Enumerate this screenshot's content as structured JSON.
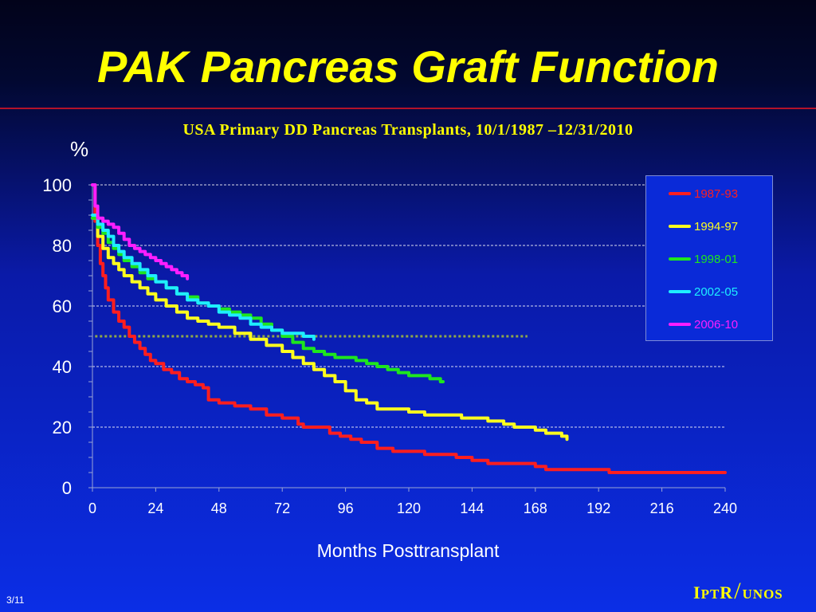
{
  "slide": {
    "title": "PAK Pancreas Graft Function",
    "page_number": "3/11",
    "logo": {
      "text_i": "I",
      "text_pt": "PT",
      "text_r": "R",
      "text_slash": "/",
      "text_unos": "UNOS"
    }
  },
  "chart_data": {
    "type": "line",
    "title": "USA Primary DD Pancreas Transplants, 10/1/1987 –12/31/2010",
    "ylabel": "%",
    "xlabel": "Months Posttransplant",
    "xlim": [
      0,
      240
    ],
    "ylim": [
      0,
      100
    ],
    "x_ticks": [
      "0",
      "24",
      "48",
      "72",
      "96",
      "120",
      "144",
      "168",
      "192",
      "216",
      "240"
    ],
    "y_ticks": [
      "100",
      "80",
      "60",
      "40",
      "20",
      "0"
    ],
    "x_tick_values": [
      0,
      24,
      48,
      72,
      96,
      120,
      144,
      168,
      192,
      216,
      240
    ],
    "y_tick_values": [
      100,
      80,
      60,
      40,
      20,
      0
    ],
    "grid": "horizontal dashed at 20, 40, 60, 80, 100",
    "reference_line": {
      "y": 50,
      "x_range": [
        1,
        165
      ],
      "color": "#8fa84a",
      "style": "dotted"
    },
    "legend_position": "top-right",
    "series": [
      {
        "name": "1987-93",
        "color": "#ff1e1e",
        "points": [
          [
            0,
            100
          ],
          [
            1,
            88
          ],
          [
            2,
            80
          ],
          [
            3,
            74
          ],
          [
            4,
            70
          ],
          [
            5,
            66
          ],
          [
            6,
            62
          ],
          [
            8,
            58
          ],
          [
            10,
            55
          ],
          [
            12,
            53
          ],
          [
            14,
            50
          ],
          [
            16,
            48
          ],
          [
            18,
            46
          ],
          [
            20,
            44
          ],
          [
            22,
            42
          ],
          [
            24,
            41
          ],
          [
            27,
            39
          ],
          [
            30,
            38
          ],
          [
            33,
            36
          ],
          [
            36,
            35
          ],
          [
            39,
            34
          ],
          [
            42,
            33
          ],
          [
            44,
            29
          ],
          [
            48,
            28
          ],
          [
            54,
            27
          ],
          [
            60,
            26
          ],
          [
            66,
            24
          ],
          [
            72,
            23
          ],
          [
            78,
            21
          ],
          [
            80,
            20
          ],
          [
            88,
            20
          ],
          [
            90,
            18
          ],
          [
            94,
            17
          ],
          [
            98,
            16
          ],
          [
            102,
            15
          ],
          [
            108,
            13
          ],
          [
            114,
            12
          ],
          [
            120,
            12
          ],
          [
            126,
            11
          ],
          [
            132,
            11
          ],
          [
            138,
            10
          ],
          [
            144,
            9
          ],
          [
            150,
            8
          ],
          [
            160,
            8
          ],
          [
            168,
            7
          ],
          [
            172,
            6
          ],
          [
            180,
            6
          ],
          [
            190,
            6
          ],
          [
            196,
            5
          ],
          [
            200,
            5
          ],
          [
            210,
            5
          ],
          [
            220,
            5
          ],
          [
            240,
            5
          ]
        ]
      },
      {
        "name": "1994-97",
        "color": "#ffff1e",
        "points": [
          [
            0,
            89
          ],
          [
            2,
            83
          ],
          [
            4,
            79
          ],
          [
            6,
            76
          ],
          [
            8,
            74
          ],
          [
            10,
            72
          ],
          [
            12,
            70
          ],
          [
            15,
            68
          ],
          [
            18,
            66
          ],
          [
            21,
            64
          ],
          [
            24,
            62
          ],
          [
            28,
            60
          ],
          [
            32,
            58
          ],
          [
            36,
            56
          ],
          [
            40,
            55
          ],
          [
            44,
            54
          ],
          [
            48,
            53
          ],
          [
            54,
            51
          ],
          [
            60,
            49
          ],
          [
            66,
            47
          ],
          [
            72,
            45
          ],
          [
            76,
            43
          ],
          [
            80,
            41
          ],
          [
            84,
            39
          ],
          [
            88,
            37
          ],
          [
            92,
            35
          ],
          [
            96,
            32
          ],
          [
            100,
            29
          ],
          [
            104,
            28
          ],
          [
            108,
            26
          ],
          [
            114,
            26
          ],
          [
            120,
            25
          ],
          [
            126,
            24
          ],
          [
            132,
            24
          ],
          [
            140,
            23
          ],
          [
            150,
            22
          ],
          [
            156,
            21
          ],
          [
            160,
            20
          ],
          [
            165,
            20
          ],
          [
            168,
            19
          ],
          [
            172,
            18
          ],
          [
            176,
            18
          ],
          [
            178,
            17
          ],
          [
            180,
            16
          ]
        ]
      },
      {
        "name": "1998-01",
        "color": "#1ee61e",
        "points": [
          [
            0,
            89
          ],
          [
            2,
            86
          ],
          [
            4,
            84
          ],
          [
            6,
            81
          ],
          [
            8,
            79
          ],
          [
            10,
            77
          ],
          [
            12,
            75
          ],
          [
            15,
            73
          ],
          [
            18,
            71
          ],
          [
            21,
            69
          ],
          [
            24,
            68
          ],
          [
            28,
            66
          ],
          [
            32,
            64
          ],
          [
            36,
            63
          ],
          [
            40,
            61
          ],
          [
            44,
            60
          ],
          [
            48,
            59
          ],
          [
            52,
            58
          ],
          [
            56,
            57
          ],
          [
            60,
            56
          ],
          [
            64,
            54
          ],
          [
            68,
            52
          ],
          [
            72,
            50
          ],
          [
            76,
            48
          ],
          [
            80,
            46
          ],
          [
            84,
            45
          ],
          [
            88,
            44
          ],
          [
            92,
            43
          ],
          [
            96,
            43
          ],
          [
            100,
            42
          ],
          [
            104,
            41
          ],
          [
            108,
            40
          ],
          [
            112,
            39
          ],
          [
            116,
            38
          ],
          [
            120,
            37
          ],
          [
            124,
            37
          ],
          [
            128,
            36
          ],
          [
            132,
            35
          ],
          [
            133,
            35
          ]
        ]
      },
      {
        "name": "2002-05",
        "color": "#1eeeff",
        "points": [
          [
            0,
            90
          ],
          [
            2,
            87
          ],
          [
            4,
            85
          ],
          [
            6,
            83
          ],
          [
            8,
            80
          ],
          [
            10,
            78
          ],
          [
            12,
            76
          ],
          [
            15,
            74
          ],
          [
            18,
            72
          ],
          [
            21,
            70
          ],
          [
            24,
            68
          ],
          [
            28,
            66
          ],
          [
            32,
            64
          ],
          [
            36,
            62
          ],
          [
            40,
            61
          ],
          [
            44,
            60
          ],
          [
            48,
            58
          ],
          [
            52,
            57
          ],
          [
            56,
            56
          ],
          [
            60,
            54
          ],
          [
            64,
            53
          ],
          [
            68,
            52
          ],
          [
            72,
            51
          ],
          [
            76,
            51
          ],
          [
            80,
            50
          ],
          [
            84,
            49
          ]
        ]
      },
      {
        "name": "2006-10",
        "color": "#ff1eff",
        "points": [
          [
            0,
            100
          ],
          [
            1,
            93
          ],
          [
            2,
            89
          ],
          [
            4,
            88
          ],
          [
            6,
            87
          ],
          [
            8,
            86
          ],
          [
            10,
            84
          ],
          [
            12,
            82
          ],
          [
            14,
            80
          ],
          [
            16,
            79
          ],
          [
            18,
            78
          ],
          [
            20,
            77
          ],
          [
            22,
            76
          ],
          [
            24,
            75
          ],
          [
            26,
            74
          ],
          [
            28,
            73
          ],
          [
            30,
            72
          ],
          [
            32,
            71
          ],
          [
            34,
            70
          ],
          [
            36,
            69
          ]
        ]
      }
    ]
  }
}
